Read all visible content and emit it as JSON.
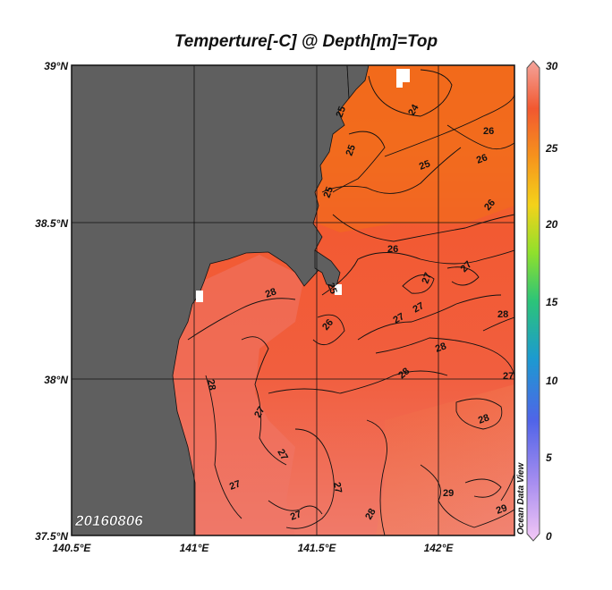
{
  "title": "Temperture[-C] @ Depth[m]=Top",
  "date_stamp": "20160806",
  "watermark": "Ocean Data View",
  "lat_ticks": [
    "39°N",
    "38.5°N",
    "38°N",
    "37.5°N"
  ],
  "lon_ticks": [
    "140.5°E",
    "141°E",
    "141.5°E",
    "142°E"
  ],
  "colorbar": {
    "labels": [
      "30",
      "25",
      "20",
      "15",
      "10",
      "5",
      "0"
    ],
    "min": 0,
    "max": 30
  },
  "contour_labels": [
    "24",
    "25",
    "25",
    "25",
    "25",
    "26",
    "26",
    "26",
    "26",
    "27",
    "27",
    "27",
    "27",
    "27",
    "27",
    "28",
    "28",
    "28",
    "28",
    "28",
    "28",
    "29",
    "29",
    "25",
    "28"
  ],
  "colors": {
    "land": "#5f5f5f",
    "warm_north": "#f26a1f",
    "mid": "#f25a35",
    "south": "#f07a68"
  }
}
